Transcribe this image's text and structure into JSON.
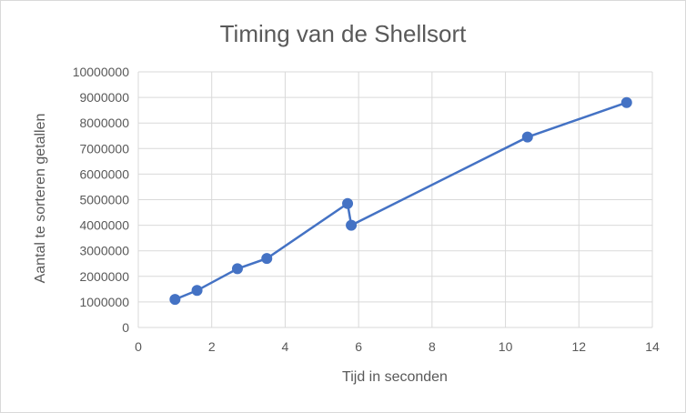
{
  "chart_data": {
    "type": "scatter",
    "title": "Timing van de Shellsort",
    "xlabel": "Tijd in seconden",
    "ylabel": "Aantal te sorteren getallen",
    "xlim": [
      0,
      14
    ],
    "ylim": [
      0,
      10000000
    ],
    "x_ticks": [
      0,
      2,
      4,
      6,
      8,
      10,
      12,
      14
    ],
    "y_ticks": [
      0,
      1000000,
      2000000,
      3000000,
      4000000,
      5000000,
      6000000,
      7000000,
      8000000,
      9000000,
      10000000
    ],
    "grid": true,
    "legend": "none",
    "series_color": "#4472c4",
    "series": [
      {
        "points": [
          {
            "x": 1.0,
            "y": 1100000
          },
          {
            "x": 1.6,
            "y": 1450000
          },
          {
            "x": 2.7,
            "y": 2300000
          },
          {
            "x": 3.5,
            "y": 2700000
          },
          {
            "x": 5.7,
            "y": 4850000
          },
          {
            "x": 5.8,
            "y": 4000000
          },
          {
            "x": 10.6,
            "y": 7450000
          },
          {
            "x": 13.3,
            "y": 8800000
          }
        ]
      }
    ]
  }
}
